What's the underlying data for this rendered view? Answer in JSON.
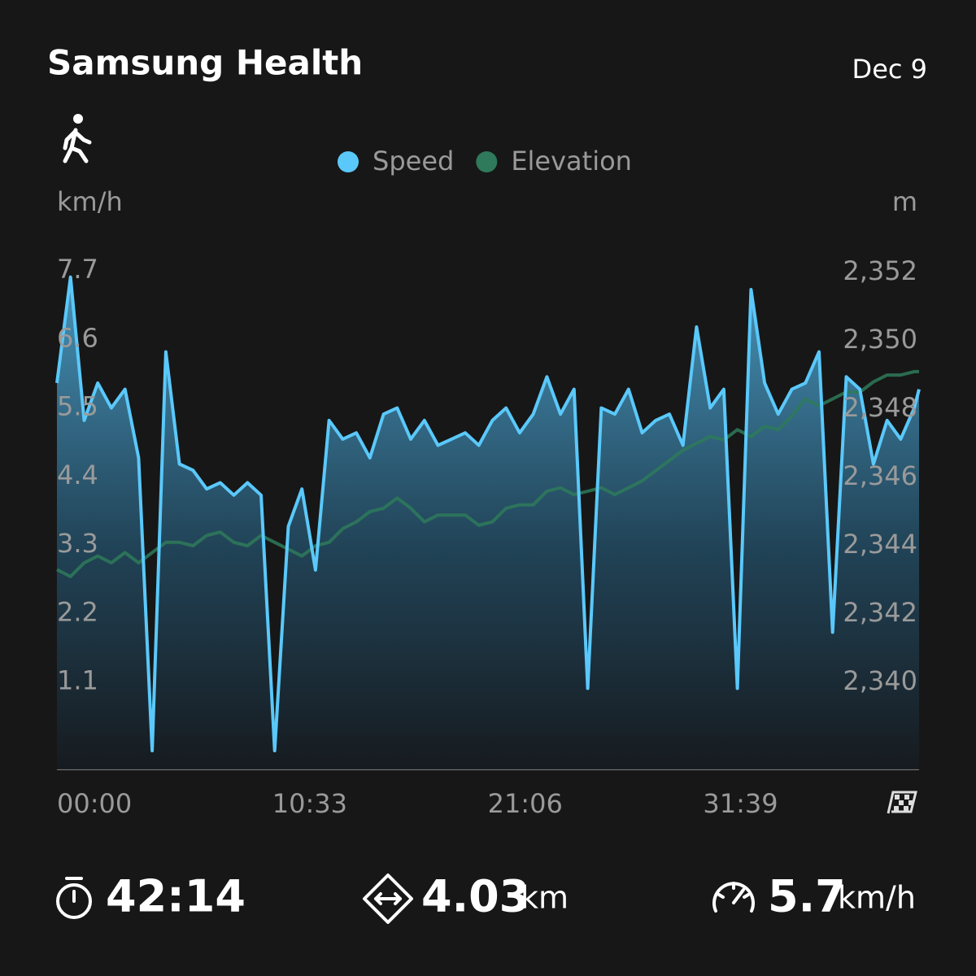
{
  "header": {
    "title": "Samsung Health",
    "date": "Dec 9"
  },
  "chart_data": {
    "type": "line",
    "y_label": "km/h",
    "y2_label": "m",
    "x": [
      0,
      40,
      80,
      120,
      160,
      200,
      240,
      280,
      320,
      360,
      400,
      440,
      480,
      520,
      560,
      600,
      640,
      680,
      720,
      760,
      800,
      840,
      880,
      920,
      960,
      1000,
      1040,
      1080,
      1120,
      1160,
      1200,
      1240,
      1280,
      1320,
      1360,
      1400,
      1440,
      1480,
      1520,
      1560,
      1600,
      1640,
      1680,
      1720,
      1760,
      1800,
      1840,
      1880,
      1920,
      1960,
      2000,
      2040,
      2080,
      2120,
      2160,
      2200,
      2240,
      2280,
      2320,
      2360,
      2400,
      2440,
      2480,
      2520,
      2534
    ],
    "series": [
      {
        "name": "Speed",
        "color": "#5ac8fa",
        "values": [
          5.9,
          7.6,
          5.3,
          5.9,
          5.5,
          5.8,
          4.7,
          0,
          6.4,
          4.6,
          4.5,
          4.2,
          4.3,
          4.1,
          4.3,
          4.1,
          0,
          3.6,
          4.2,
          2.9,
          5.3,
          5.0,
          5.1,
          4.7,
          5.4,
          5.5,
          5.0,
          5.3,
          4.9,
          5.0,
          5.1,
          4.9,
          5.3,
          5.5,
          5.1,
          5.4,
          6.0,
          5.4,
          5.8,
          1.0,
          5.5,
          5.4,
          5.8,
          5.1,
          5.3,
          5.4,
          4.9,
          6.8,
          5.5,
          5.8,
          1.0,
          7.4,
          5.9,
          5.4,
          5.8,
          5.9,
          6.4,
          1.9,
          6.0,
          5.8,
          4.6,
          5.3,
          5.0,
          5.5,
          5.8
        ]
      },
      {
        "name": "Elevation",
        "color": "#2e7a5a",
        "axis": "y2",
        "values": [
          2343.3,
          2343.1,
          2343.5,
          2343.7,
          2343.5,
          2343.8,
          2343.5,
          2343.8,
          2344.1,
          2344.1,
          2344.0,
          2344.3,
          2344.4,
          2344.1,
          2344.0,
          2344.3,
          2344.1,
          2343.9,
          2343.7,
          2344.0,
          2344.1,
          2344.5,
          2344.7,
          2345.0,
          2345.1,
          2345.4,
          2345.1,
          2344.7,
          2344.9,
          2344.9,
          2344.9,
          2344.6,
          2344.7,
          2345.1,
          2345.2,
          2345.2,
          2345.6,
          2345.7,
          2345.5,
          2345.6,
          2345.7,
          2345.5,
          2345.7,
          2345.9,
          2346.2,
          2346.5,
          2346.8,
          2347.0,
          2347.2,
          2347.1,
          2347.4,
          2347.2,
          2347.5,
          2347.4,
          2347.8,
          2348.3,
          2348.1,
          2348.3,
          2348.5,
          2348.5,
          2348.8,
          2349.0,
          2349.0,
          2349.1,
          2349.1
        ]
      }
    ],
    "xlim": [
      0,
      2534
    ],
    "xticks": [
      {
        "value": 0,
        "label": "00:00"
      },
      {
        "value": 633,
        "label": "10:33"
      },
      {
        "value": 1266,
        "label": "21:06"
      },
      {
        "value": 1899,
        "label": "31:39"
      }
    ],
    "ylim": [
      -0.3,
      8.0
    ],
    "yticks": [
      7.7,
      6.6,
      5.5,
      4.4,
      3.3,
      2.2,
      1.1
    ],
    "y2lim": [
      2337.45,
      2352.6
    ],
    "y2ticks": [
      {
        "value": 2352,
        "label": "2,352"
      },
      {
        "value": 2350,
        "label": "2,350"
      },
      {
        "value": 2348,
        "label": "2,348"
      },
      {
        "value": 2346,
        "label": "2,346"
      },
      {
        "value": 2344,
        "label": "2,344"
      },
      {
        "value": 2342,
        "label": "2,342"
      },
      {
        "value": 2340,
        "label": "2,340"
      }
    ],
    "grid": false,
    "legend": "top"
  },
  "stats": {
    "duration": "42:14",
    "distance": "4.03",
    "distance_unit": "km",
    "speed": "5.7",
    "speed_unit": "km/h"
  }
}
